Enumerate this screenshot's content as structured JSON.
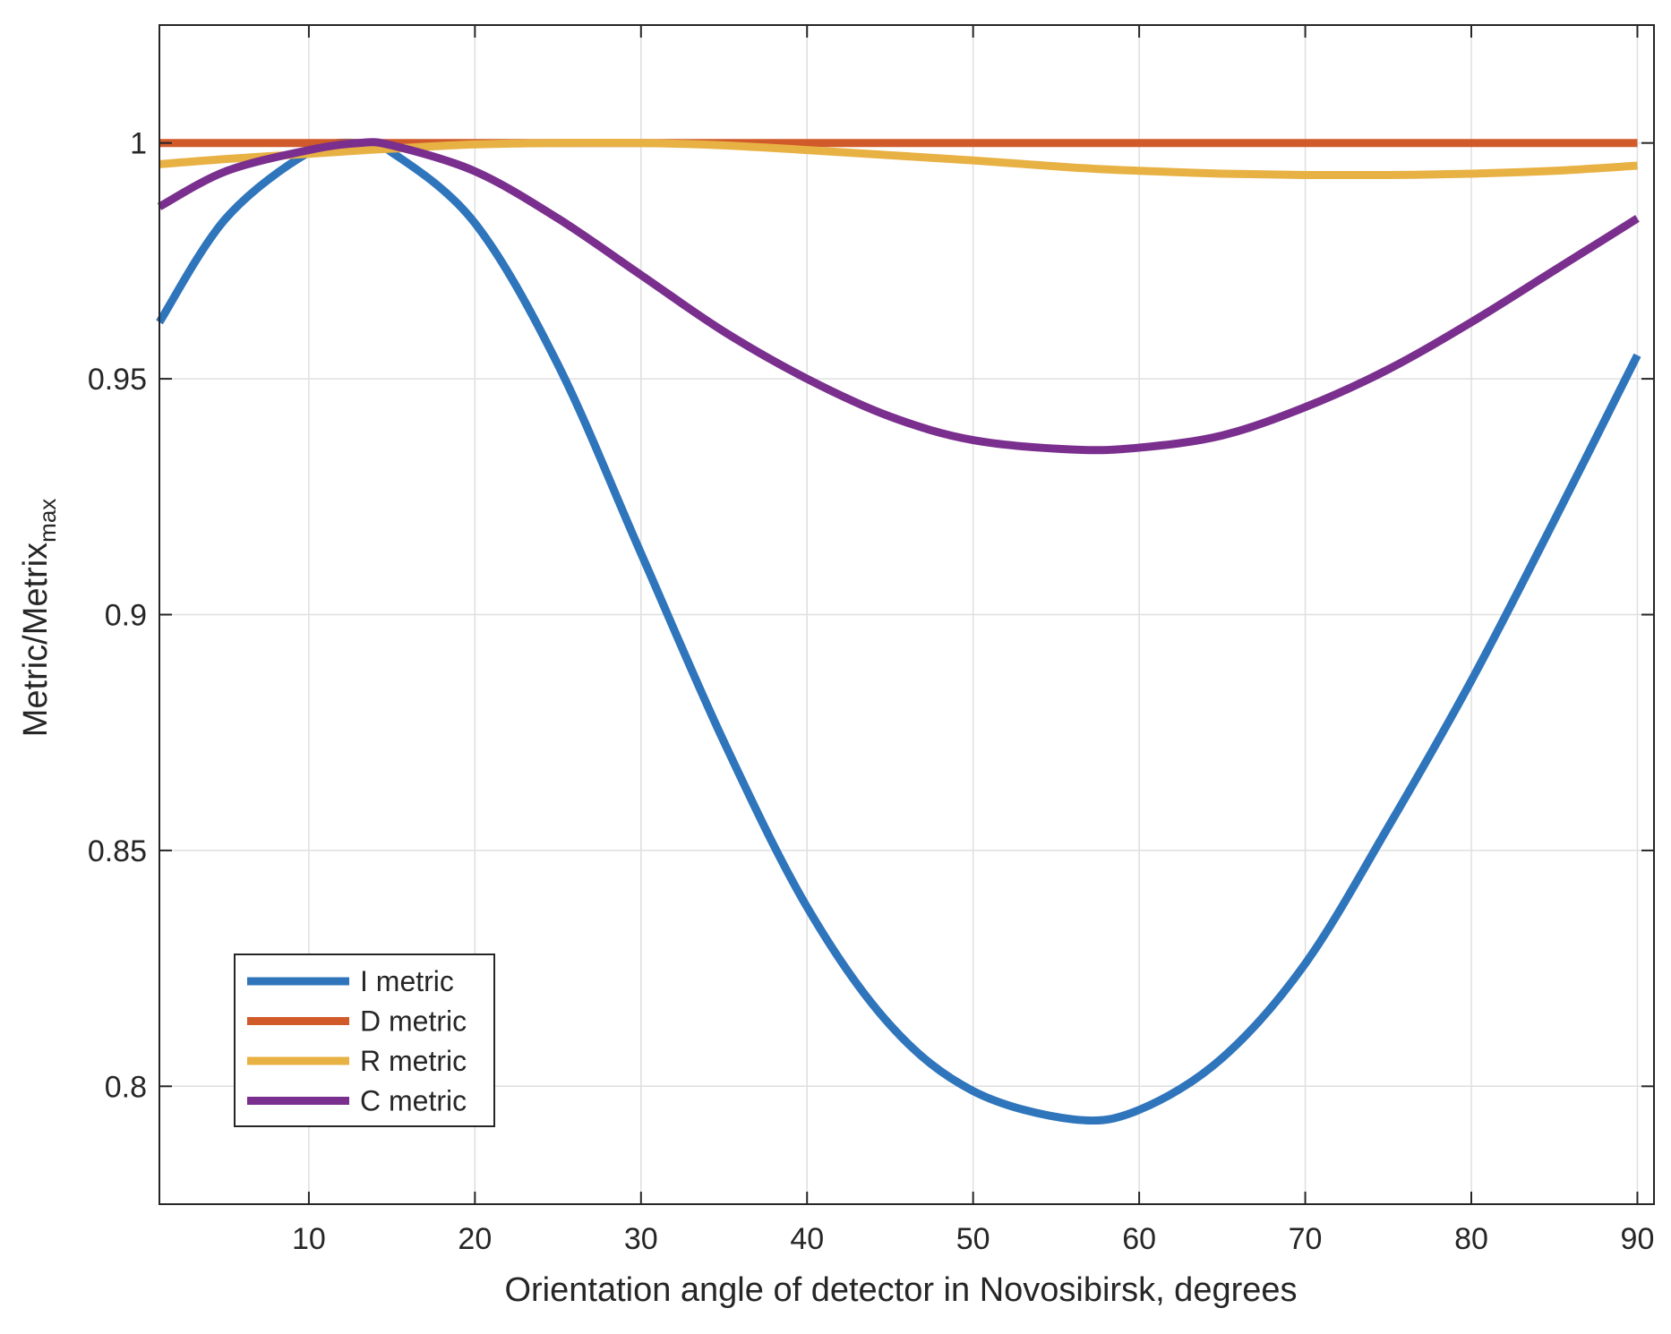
{
  "chart_data": {
    "type": "line",
    "title": "",
    "xlabel": "Orientation angle of detector in Novosibirsk, degrees",
    "ylabel": {
      "main": "Metric/Metrix",
      "subscript": "max"
    },
    "xlim": [
      1,
      91
    ],
    "ylim": [
      0.775,
      1.025
    ],
    "x_ticks": [
      10,
      20,
      30,
      40,
      50,
      60,
      70,
      80,
      90
    ],
    "x_tick_labels": [
      "10",
      "20",
      "30",
      "40",
      "50",
      "60",
      "70",
      "80",
      "90"
    ],
    "y_ticks": [
      0.8,
      0.85,
      0.9,
      0.95,
      1
    ],
    "y_tick_labels": [
      "0.8",
      "0.85",
      "0.9",
      "0.95",
      "1"
    ],
    "grid": true,
    "legend_position": "bottom-left",
    "x": [
      1,
      5,
      10,
      13,
      15,
      20,
      25,
      30,
      35,
      40,
      45,
      50,
      56,
      60,
      65,
      70,
      75,
      80,
      85,
      90
    ],
    "series": [
      {
        "name": "I metric",
        "color": "#2f75bc",
        "values": [
          0.962,
          0.984,
          0.998,
          1.0,
          0.998,
          0.983,
          0.953,
          0.913,
          0.873,
          0.838,
          0.813,
          0.799,
          0.793,
          0.795,
          0.806,
          0.826,
          0.855,
          0.886,
          0.92,
          0.955
        ]
      },
      {
        "name": "D metric",
        "color": "#d05a29",
        "values": [
          1.0,
          1.0,
          1.0,
          1.0,
          1.0,
          1.0,
          1.0,
          1.0,
          1.0,
          1.0,
          1.0,
          1.0,
          1.0,
          1.0,
          1.0,
          1.0,
          1.0,
          1.0,
          1.0,
          1.0
        ]
      },
      {
        "name": "R metric",
        "color": "#e8b143",
        "values": [
          0.9955,
          0.9966,
          0.9977,
          0.9984,
          0.9988,
          0.9997,
          1.0,
          1.0,
          0.9995,
          0.9985,
          0.9974,
          0.9963,
          0.9948,
          0.9941,
          0.9935,
          0.9932,
          0.9932,
          0.9935,
          0.9941,
          0.9952
        ]
      },
      {
        "name": "C metric",
        "color": "#7a2f8e",
        "values": [
          0.9865,
          0.994,
          0.9985,
          1.0,
          0.9995,
          0.994,
          0.984,
          0.972,
          0.96,
          0.95,
          0.942,
          0.937,
          0.935,
          0.9354,
          0.938,
          0.944,
          0.952,
          0.962,
          0.973,
          0.984
        ]
      }
    ]
  }
}
